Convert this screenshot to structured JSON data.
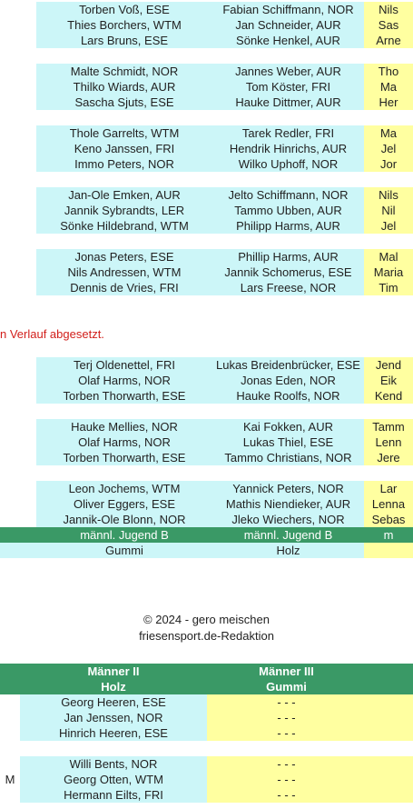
{
  "table1": {
    "groups": [
      [
        [
          "Torben Voß, ESE",
          "Fabian Schiffmann, NOR",
          "Nils"
        ],
        [
          "Thies Borchers, WTM",
          "Jan Schneider, AUR",
          "Sas"
        ],
        [
          "Lars Bruns, ESE",
          "Sönke Henkel, AUR",
          "Arne"
        ]
      ],
      [
        [
          "Malte Schmidt, NOR",
          "Jannes Weber, AUR",
          "Tho"
        ],
        [
          "Thilko Wiards, AUR",
          "Tom Köster, FRI",
          "Ma"
        ],
        [
          "Sascha Sjuts, ESE",
          "Hauke Dittmer, AUR",
          "Her"
        ]
      ],
      [
        [
          "Thole Garrelts, WTM",
          "Tarek Redler, FRI",
          "Ma"
        ],
        [
          "Keno Janssen, FRI",
          "Hendrik Hinrichs, AUR",
          "Jel"
        ],
        [
          "Immo Peters, NOR",
          "Wilko Uphoff, NOR",
          "Jor"
        ]
      ],
      [
        [
          "Jan-Ole Emken, AUR",
          "Jelto Schiffmann, NOR",
          "Nils"
        ],
        [
          "Jannik Sybrandts, LER",
          "Tammo Ubben, AUR",
          "Nil"
        ],
        [
          "Sönke Hildebrand, WTM",
          "Philipp Harms, AUR",
          "Jel"
        ]
      ],
      [
        [
          "Jonas Peters, ESE",
          "Phillip Harms, AUR",
          "Mal"
        ],
        [
          "Nils Andressen, WTM",
          "Jannik Schomerus, ESE",
          "Maria"
        ],
        [
          "Dennis de Vries, FRI",
          "Lars Freese, NOR",
          "Tim"
        ]
      ]
    ]
  },
  "note": "n Verlauf abgesetzt.",
  "table2": {
    "groups": [
      [
        [
          "Terj Oldenettel, FRI",
          "Lukas Breidenbrücker, ESE",
          "Jend"
        ],
        [
          "Olaf Harms, NOR",
          "Jonas Eden, NOR",
          "Eik"
        ],
        [
          "Torben Thorwarth, ESE",
          "Hauke Roolfs, NOR",
          "Kend"
        ]
      ],
      [
        [
          "Hauke Mellies, NOR",
          "Kai Fokken, AUR",
          "Tamm"
        ],
        [
          "Olaf Harms, NOR",
          "Lukas Thiel, ESE",
          "Lenn"
        ],
        [
          "Torben Thorwarth, ESE",
          "Tammo Christians, NOR",
          "Jere"
        ]
      ],
      [
        [
          "Leon Jochems, WTM",
          "Yannick Peters, NOR",
          "Lar"
        ],
        [
          "Oliver Eggers, ESE",
          "Mathis Niendieker, AUR",
          "Lenna"
        ],
        [
          "Jannik-Ole Blonn, NOR",
          "Jleko Wiechers, NOR",
          "Sebas"
        ]
      ]
    ],
    "category_row": [
      "männl. Jugend B",
      "männl. Jugend B",
      "m"
    ],
    "type_row": [
      "Gummi",
      "Holz",
      ""
    ]
  },
  "footer": {
    "copyright": "© 2024 - gero meischen",
    "editor": "friesensport.de-Redaktion"
  },
  "table3": {
    "header": {
      "col2_title": "Männer II",
      "col2_sub": "Holz",
      "col3_title": "Männer III",
      "col3_sub": "Gummi"
    },
    "groups": [
      [
        [
          "",
          "Georg Heeren, ESE",
          "- - -"
        ],
        [
          "",
          "Jan Jenssen, NOR",
          "- - -"
        ],
        [
          "",
          "Hinrich Heeren, ESE",
          "- - -"
        ]
      ],
      [
        [
          "",
          "Willi Bents, NOR",
          "- - -"
        ],
        [
          "M",
          "Georg Otten, WTM",
          "- - -"
        ],
        [
          "",
          "Hermann Eilts, FRI",
          "- - -"
        ]
      ]
    ]
  },
  "colors": {
    "cyan": "#ccf6f8",
    "yellow": "#ffffa0",
    "green": "#3a9966",
    "note_red": "#d2201c"
  }
}
